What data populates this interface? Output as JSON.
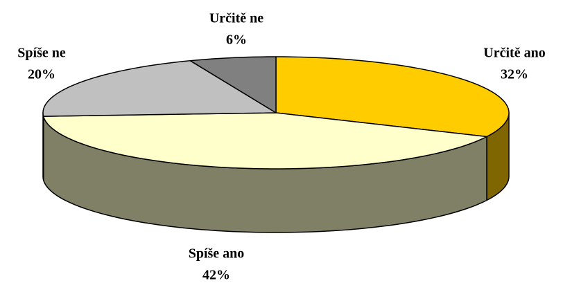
{
  "chart_data": {
    "type": "pie",
    "categories": [
      "Určitě ano",
      "Spíše ano",
      "Spíše ne",
      "Určitě ne"
    ],
    "values": [
      32,
      42,
      20,
      6
    ],
    "value_labels": [
      "32%",
      "42%",
      "20%",
      "6%"
    ],
    "colors": [
      "#ffcc00",
      "#ffffcc",
      "#c0c0c0",
      "#808080"
    ]
  }
}
